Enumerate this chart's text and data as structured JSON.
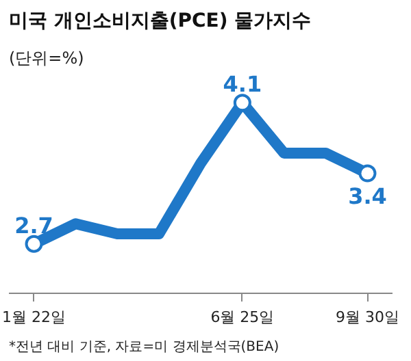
{
  "chart_data": {
    "type": "line",
    "title": "미국 개인소비지출(PCE) 물가지수",
    "subtitle": "(단위=%)",
    "categories": [
      "1월 22일",
      null,
      null,
      null,
      null,
      "6월 25일",
      null,
      null,
      "9월 30일"
    ],
    "series": [
      {
        "color": "#1f78c8",
        "values": [
          2.7,
          2.9,
          2.8,
          2.8,
          3.5,
          4.1,
          3.6,
          3.6,
          3.4
        ],
        "value_labels": [
          "2.7",
          null,
          null,
          null,
          null,
          "4.1",
          null,
          null,
          "3.4"
        ]
      }
    ],
    "annotations": [
      "*전년 대비 기준, 자료=미 경제분석국(BEA)"
    ],
    "grid": false
  }
}
